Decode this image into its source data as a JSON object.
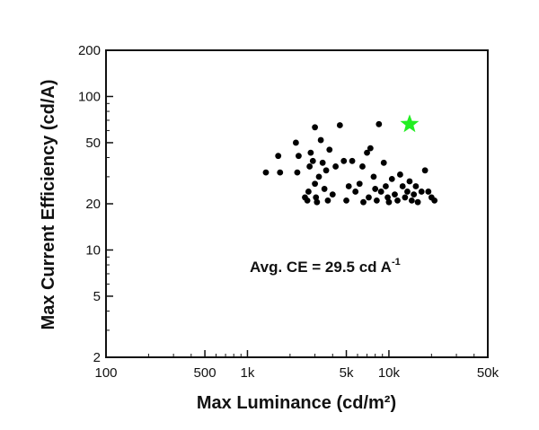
{
  "chart_data": {
    "type": "scatter",
    "title": "",
    "xlabel": "Max Luminance (cd/m²)",
    "ylabel": "Max Current Efficiency (cd/A)",
    "x_scale": "log",
    "y_scale": "log",
    "xlim": [
      100,
      50000
    ],
    "ylim": [
      2,
      200
    ],
    "x_ticks": [
      {
        "value": 100,
        "label": "100"
      },
      {
        "value": 500,
        "label": "500"
      },
      {
        "value": 1000,
        "label": "1k"
      },
      {
        "value": 5000,
        "label": "5k"
      },
      {
        "value": 10000,
        "label": "10k"
      },
      {
        "value": 50000,
        "label": "50k"
      }
    ],
    "y_ticks": [
      {
        "value": 2,
        "label": "2"
      },
      {
        "value": 5,
        "label": "5"
      },
      {
        "value": 10,
        "label": "10"
      },
      {
        "value": 20,
        "label": "20"
      },
      {
        "value": 50,
        "label": "50"
      },
      {
        "value": 100,
        "label": "100"
      },
      {
        "value": 200,
        "label": "200"
      }
    ],
    "grid": false,
    "annotation": {
      "main": "Avg. CE = 29.5 cd A",
      "superscript": "-1"
    },
    "series": [
      {
        "marker": "circle",
        "color": "#000000",
        "points": [
          [
            1350,
            32
          ],
          [
            1650,
            41
          ],
          [
            1700,
            32
          ],
          [
            2200,
            50
          ],
          [
            2300,
            41
          ],
          [
            2250,
            32
          ],
          [
            2550,
            22
          ],
          [
            2650,
            21
          ],
          [
            2700,
            24
          ],
          [
            2750,
            35
          ],
          [
            2800,
            43
          ],
          [
            2900,
            38
          ],
          [
            3000,
            63
          ],
          [
            3000,
            27
          ],
          [
            3050,
            22
          ],
          [
            3100,
            20.5
          ],
          [
            3200,
            30
          ],
          [
            3300,
            52
          ],
          [
            3400,
            37
          ],
          [
            3500,
            25
          ],
          [
            3600,
            33
          ],
          [
            3700,
            21
          ],
          [
            3800,
            45
          ],
          [
            4000,
            23
          ],
          [
            4200,
            35
          ],
          [
            4500,
            65
          ],
          [
            4800,
            38
          ],
          [
            5000,
            21
          ],
          [
            5200,
            26
          ],
          [
            5500,
            38
          ],
          [
            5800,
            24
          ],
          [
            6200,
            27
          ],
          [
            6500,
            35
          ],
          [
            6600,
            20.5
          ],
          [
            7000,
            43
          ],
          [
            7200,
            22
          ],
          [
            7400,
            46
          ],
          [
            7800,
            30
          ],
          [
            8000,
            25
          ],
          [
            8200,
            21
          ],
          [
            8500,
            66
          ],
          [
            8800,
            24
          ],
          [
            9200,
            37
          ],
          [
            9500,
            26
          ],
          [
            9800,
            22
          ],
          [
            10000,
            20.5
          ],
          [
            10500,
            29
          ],
          [
            11000,
            23
          ],
          [
            11500,
            21
          ],
          [
            12000,
            31
          ],
          [
            12500,
            26
          ],
          [
            13000,
            22
          ],
          [
            13500,
            24
          ],
          [
            14000,
            28
          ],
          [
            14500,
            21
          ],
          [
            15000,
            23
          ],
          [
            15500,
            26
          ],
          [
            16000,
            20.5
          ],
          [
            17000,
            24
          ],
          [
            18000,
            33
          ],
          [
            19000,
            24
          ],
          [
            20000,
            22
          ],
          [
            21000,
            21
          ]
        ]
      },
      {
        "marker": "star",
        "color": "#22ee22",
        "points": [
          [
            14000,
            66
          ]
        ]
      }
    ]
  }
}
